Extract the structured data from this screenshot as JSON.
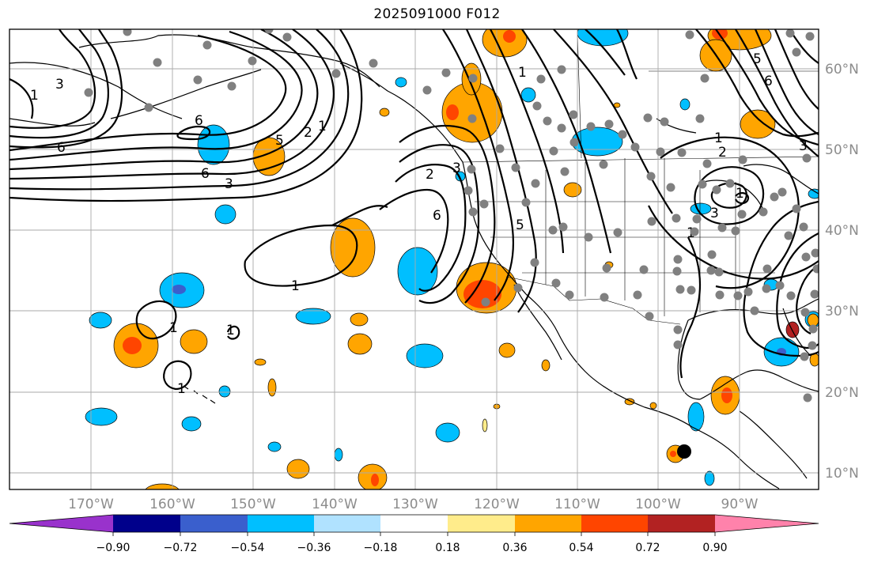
{
  "title": "2025091000 F012",
  "map": {
    "longitude_labels": [
      "170°W",
      "160°W",
      "150°W",
      "140°W",
      "130°W",
      "120°W",
      "110°W",
      "100°W",
      "90°W"
    ],
    "latitude_labels": [
      "60°N",
      "50°N",
      "40°N",
      "30°N",
      "20°N",
      "10°N"
    ],
    "contour_labels": [
      "1",
      "3",
      "6",
      "6",
      "3",
      "6",
      "5",
      "2",
      "1",
      "2",
      "6",
      "3",
      "5",
      "1",
      "1",
      "1",
      "1",
      "1",
      "6",
      "5",
      "3",
      "1",
      "2",
      "3",
      "1",
      "1"
    ],
    "marker_color": "#808080"
  },
  "colorbar": {
    "tick_labels": [
      "−0.90",
      "−0.72",
      "−0.54",
      "−0.36",
      "−0.18",
      "0.18",
      "0.36",
      "0.54",
      "0.72",
      "0.90"
    ],
    "colors": [
      "#9932cc",
      "#00008b",
      "#3a5fcd",
      "#00bfff",
      "#b0e2ff",
      "#ffffff",
      "#ffec8b",
      "#ffa500",
      "#ff4500",
      "#b22222",
      "#ff82ab"
    ]
  }
}
